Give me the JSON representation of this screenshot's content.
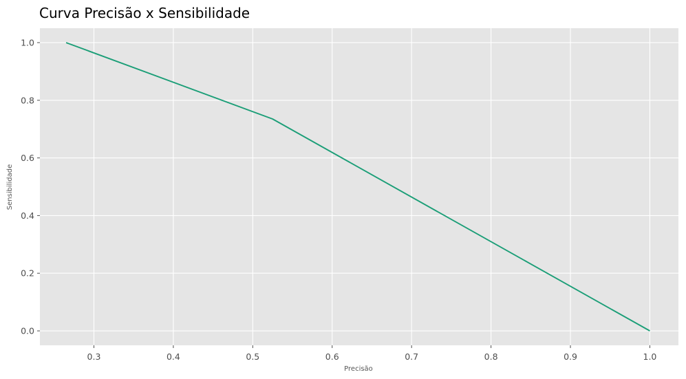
{
  "chart_data": {
    "type": "line",
    "title": "Curva Precisão x Sensibilidade",
    "xlabel": "Precisão",
    "ylabel": "Sensibilidade",
    "xlim": [
      0.232,
      1.036
    ],
    "ylim": [
      -0.05,
      1.05
    ],
    "x_ticks": [
      0.3,
      0.4,
      0.5,
      0.6,
      0.7,
      0.8,
      0.9,
      1.0
    ],
    "x_tick_labels": [
      "0.3",
      "0.4",
      "0.5",
      "0.6",
      "0.7",
      "0.8",
      "0.9",
      "1.0"
    ],
    "y_ticks": [
      0.0,
      0.2,
      0.4,
      0.6,
      0.8,
      1.0
    ],
    "y_tick_labels": [
      "0.0",
      "0.2",
      "0.4",
      "0.6",
      "0.8",
      "1.0"
    ],
    "grid": true,
    "series": [
      {
        "x": [
          0.265,
          0.525,
          1.0
        ],
        "y": [
          1.0,
          0.735,
          0.0
        ]
      }
    ],
    "colors": {
      "background": "#e5e5e5",
      "grid": "#ffffff",
      "line": "#1b9e77",
      "tick": "#4d4d4d"
    }
  }
}
